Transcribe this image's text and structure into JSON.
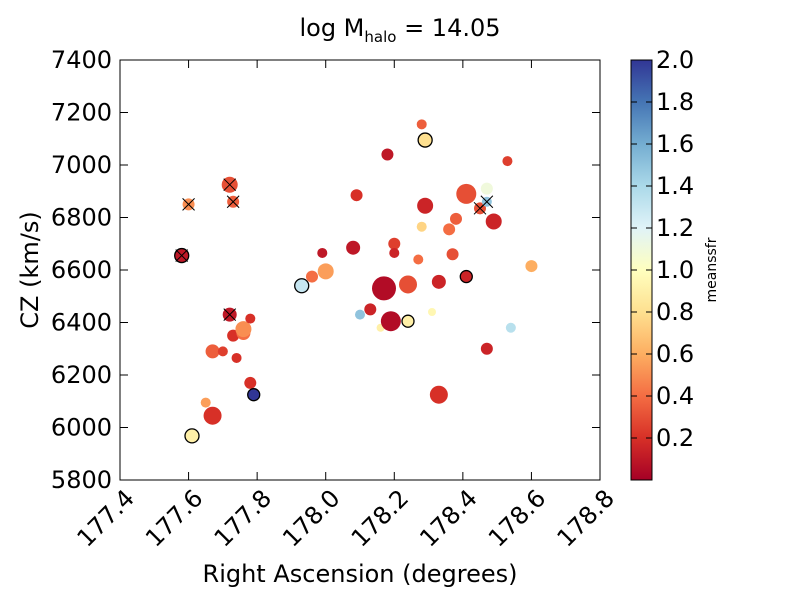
{
  "chart_data": {
    "type": "scatter",
    "title": "log M",
    "title_subscript": "halo",
    "title_suffix": " = 14.05",
    "xlabel": "Right Ascension (degrees)",
    "ylabel": "CZ (km/s)",
    "xlim": [
      177.4,
      178.8
    ],
    "ylim": [
      5800,
      7400
    ],
    "xticks": [
      "177.4",
      "177.6",
      "177.8",
      "178.0",
      "178.2",
      "178.4",
      "178.6",
      "178.8"
    ],
    "yticks": [
      "5800",
      "6000",
      "6200",
      "6400",
      "6600",
      "6800",
      "7000",
      "7200",
      "7400"
    ],
    "grid": false,
    "colorbar": {
      "label": "meanssfr",
      "range": [
        0.0,
        2.0
      ],
      "ticks": [
        "0.2",
        "0.4",
        "0.6",
        "0.8",
        "1.0",
        "1.2",
        "1.4",
        "1.6",
        "1.8",
        "2.0"
      ],
      "colormap": "RdYlBu",
      "stops": [
        "#a50026",
        "#d73027",
        "#f46d43",
        "#fdae61",
        "#fee090",
        "#ffffbf",
        "#e0f3f8",
        "#abd9e9",
        "#74add1",
        "#4575b4",
        "#313695"
      ]
    },
    "points": [
      {
        "x": 177.58,
        "y": 6655,
        "c": 0.1,
        "s": 7,
        "edge": "ring",
        "marker": "x"
      },
      {
        "x": 177.6,
        "y": 6850,
        "c": 0.5,
        "s": 6,
        "marker": "x"
      },
      {
        "x": 177.72,
        "y": 6925,
        "c": 0.3,
        "s": 8,
        "marker": "x"
      },
      {
        "x": 177.73,
        "y": 6860,
        "c": 0.35,
        "s": 6,
        "marker": "x"
      },
      {
        "x": 177.72,
        "y": 6430,
        "c": 0.1,
        "s": 7,
        "marker": "x"
      },
      {
        "x": 177.61,
        "y": 5968,
        "c": 0.9,
        "s": 7,
        "edge": "ring"
      },
      {
        "x": 177.65,
        "y": 6095,
        "c": 0.55,
        "s": 5
      },
      {
        "x": 177.67,
        "y": 6045,
        "c": 0.2,
        "s": 9
      },
      {
        "x": 177.67,
        "y": 6290,
        "c": 0.35,
        "s": 7
      },
      {
        "x": 177.7,
        "y": 6290,
        "c": 0.25,
        "s": 5
      },
      {
        "x": 177.73,
        "y": 6350,
        "c": 0.2,
        "s": 6
      },
      {
        "x": 177.74,
        "y": 6265,
        "c": 0.2,
        "s": 5
      },
      {
        "x": 177.76,
        "y": 6360,
        "c": 0.4,
        "s": 7
      },
      {
        "x": 177.76,
        "y": 6375,
        "c": 0.5,
        "s": 8
      },
      {
        "x": 177.78,
        "y": 6415,
        "c": 0.2,
        "s": 5
      },
      {
        "x": 177.78,
        "y": 6170,
        "c": 0.2,
        "s": 6
      },
      {
        "x": 177.79,
        "y": 6125,
        "c": 2.0,
        "s": 6,
        "edge": "ring"
      },
      {
        "x": 177.93,
        "y": 6540,
        "c": 1.3,
        "s": 7,
        "edge": "ring"
      },
      {
        "x": 177.96,
        "y": 6575,
        "c": 0.4,
        "s": 6
      },
      {
        "x": 177.99,
        "y": 6665,
        "c": 0.1,
        "s": 5
      },
      {
        "x": 178.0,
        "y": 6595,
        "c": 0.55,
        "s": 8
      },
      {
        "x": 178.08,
        "y": 6685,
        "c": 0.1,
        "s": 7
      },
      {
        "x": 178.09,
        "y": 6885,
        "c": 0.2,
        "s": 6
      },
      {
        "x": 178.1,
        "y": 6430,
        "c": 1.5,
        "s": 5
      },
      {
        "x": 178.13,
        "y": 6450,
        "c": 0.15,
        "s": 6
      },
      {
        "x": 178.16,
        "y": 6380,
        "c": 0.9,
        "s": 4
      },
      {
        "x": 178.17,
        "y": 6530,
        "c": 0.05,
        "s": 12
      },
      {
        "x": 178.18,
        "y": 7040,
        "c": 0.1,
        "s": 6
      },
      {
        "x": 178.19,
        "y": 6405,
        "c": 0.05,
        "s": 10
      },
      {
        "x": 178.2,
        "y": 6700,
        "c": 0.25,
        "s": 6
      },
      {
        "x": 178.2,
        "y": 6665,
        "c": 0.15,
        "s": 5
      },
      {
        "x": 178.24,
        "y": 6545,
        "c": 0.3,
        "s": 9
      },
      {
        "x": 178.24,
        "y": 6405,
        "c": 0.9,
        "s": 6,
        "edge": "ring"
      },
      {
        "x": 178.27,
        "y": 6640,
        "c": 0.4,
        "s": 5
      },
      {
        "x": 178.28,
        "y": 6765,
        "c": 0.75,
        "s": 5
      },
      {
        "x": 178.28,
        "y": 7155,
        "c": 0.35,
        "s": 5
      },
      {
        "x": 178.29,
        "y": 7095,
        "c": 0.8,
        "s": 7,
        "edge": "ring"
      },
      {
        "x": 178.29,
        "y": 6845,
        "c": 0.15,
        "s": 8
      },
      {
        "x": 178.31,
        "y": 6440,
        "c": 0.95,
        "s": 4
      },
      {
        "x": 178.33,
        "y": 6555,
        "c": 0.15,
        "s": 7
      },
      {
        "x": 178.33,
        "y": 6125,
        "c": 0.2,
        "s": 9
      },
      {
        "x": 178.36,
        "y": 6755,
        "c": 0.4,
        "s": 6
      },
      {
        "x": 178.37,
        "y": 6660,
        "c": 0.3,
        "s": 6
      },
      {
        "x": 178.38,
        "y": 6795,
        "c": 0.35,
        "s": 6
      },
      {
        "x": 178.41,
        "y": 6890,
        "c": 0.3,
        "s": 10
      },
      {
        "x": 178.41,
        "y": 6575,
        "c": 0.15,
        "s": 6,
        "edge": "ring"
      },
      {
        "x": 178.45,
        "y": 6835,
        "c": 0.3,
        "s": 6,
        "marker": "x"
      },
      {
        "x": 178.47,
        "y": 6300,
        "c": 0.15,
        "s": 6
      },
      {
        "x": 178.47,
        "y": 6910,
        "c": 1.1,
        "s": 6
      },
      {
        "x": 178.47,
        "y": 6860,
        "c": 1.5,
        "s": 5,
        "marker": "x"
      },
      {
        "x": 178.49,
        "y": 6785,
        "c": 0.15,
        "s": 8
      },
      {
        "x": 178.53,
        "y": 7015,
        "c": 0.25,
        "s": 5
      },
      {
        "x": 178.54,
        "y": 6380,
        "c": 1.35,
        "s": 5
      },
      {
        "x": 178.6,
        "y": 6615,
        "c": 0.6,
        "s": 6
      }
    ]
  }
}
